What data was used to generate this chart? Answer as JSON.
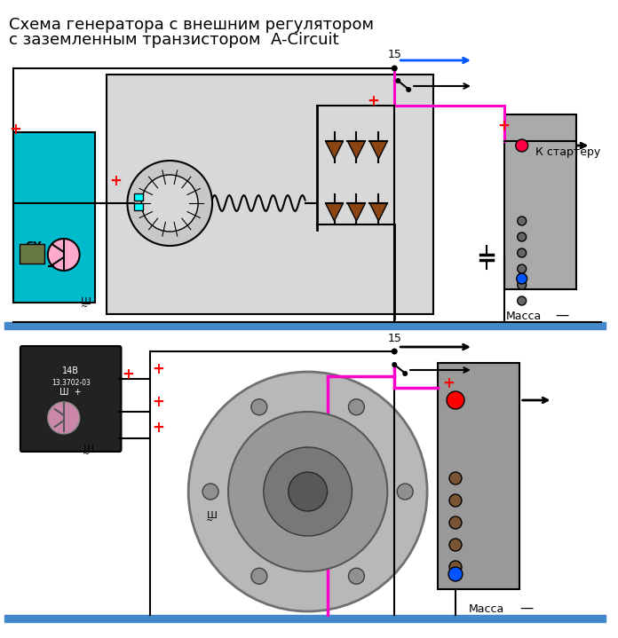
{
  "title_line1": "Схема генератора с внешним регулятором",
  "title_line2": "с заземленным транзистором  A-Circuit",
  "bg_color": "#ffffff",
  "colors": {
    "black": "#000000",
    "blue": "#0055ff",
    "pink": "#ff00cc",
    "red": "#ff0000",
    "cyan": "#00bbcc",
    "gray": "#888888",
    "light_gray": "#d8d8d8",
    "dark_gray": "#404040",
    "brown": "#8B4513",
    "bar_blue": "#4488cc",
    "white": "#ffffff"
  },
  "top": {
    "mass_label": "Масса",
    "k_starter": "К стартеру",
    "label_15": "15"
  },
  "bottom": {
    "mass_label": "Масса",
    "label_15": "15",
    "reg_text1": "14В",
    "reg_text2": "13.3702-03",
    "reg_text3": "Ш  +"
  }
}
